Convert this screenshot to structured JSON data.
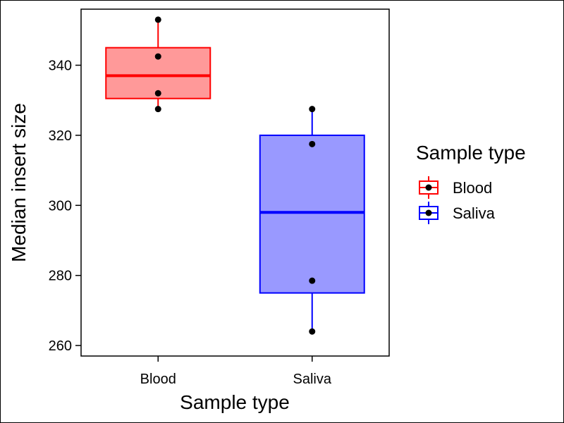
{
  "chart_data": {
    "type": "boxplot",
    "xlabel": "Sample type",
    "ylabel": "Median insert size",
    "ylim": [
      257,
      356
    ],
    "yticks": [
      260,
      280,
      300,
      320,
      340
    ],
    "categories": [
      "Blood",
      "Saliva"
    ],
    "boxes": [
      {
        "name": "Blood",
        "stroke": "#ff0000",
        "fill": "#ff9999",
        "min": 327.5,
        "q1": 330.5,
        "median": 337,
        "q3": 345,
        "max": 353,
        "points": [
          353,
          342.5,
          332,
          327.5
        ]
      },
      {
        "name": "Saliva",
        "stroke": "#0000ff",
        "fill": "#9999ff",
        "min": 264,
        "q1": 275,
        "median": 298,
        "q3": 320,
        "max": 327.5,
        "points": [
          327.5,
          317.5,
          278.5,
          264
        ]
      }
    ],
    "legend": {
      "title": "Sample type",
      "position": "right",
      "items": [
        {
          "label": "Blood",
          "stroke": "#ff0000",
          "fill": "#ff9999"
        },
        {
          "label": "Saliva",
          "stroke": "#0000ff",
          "fill": "#9999ff"
        }
      ]
    },
    "grid": false,
    "point_color": "#000000"
  }
}
